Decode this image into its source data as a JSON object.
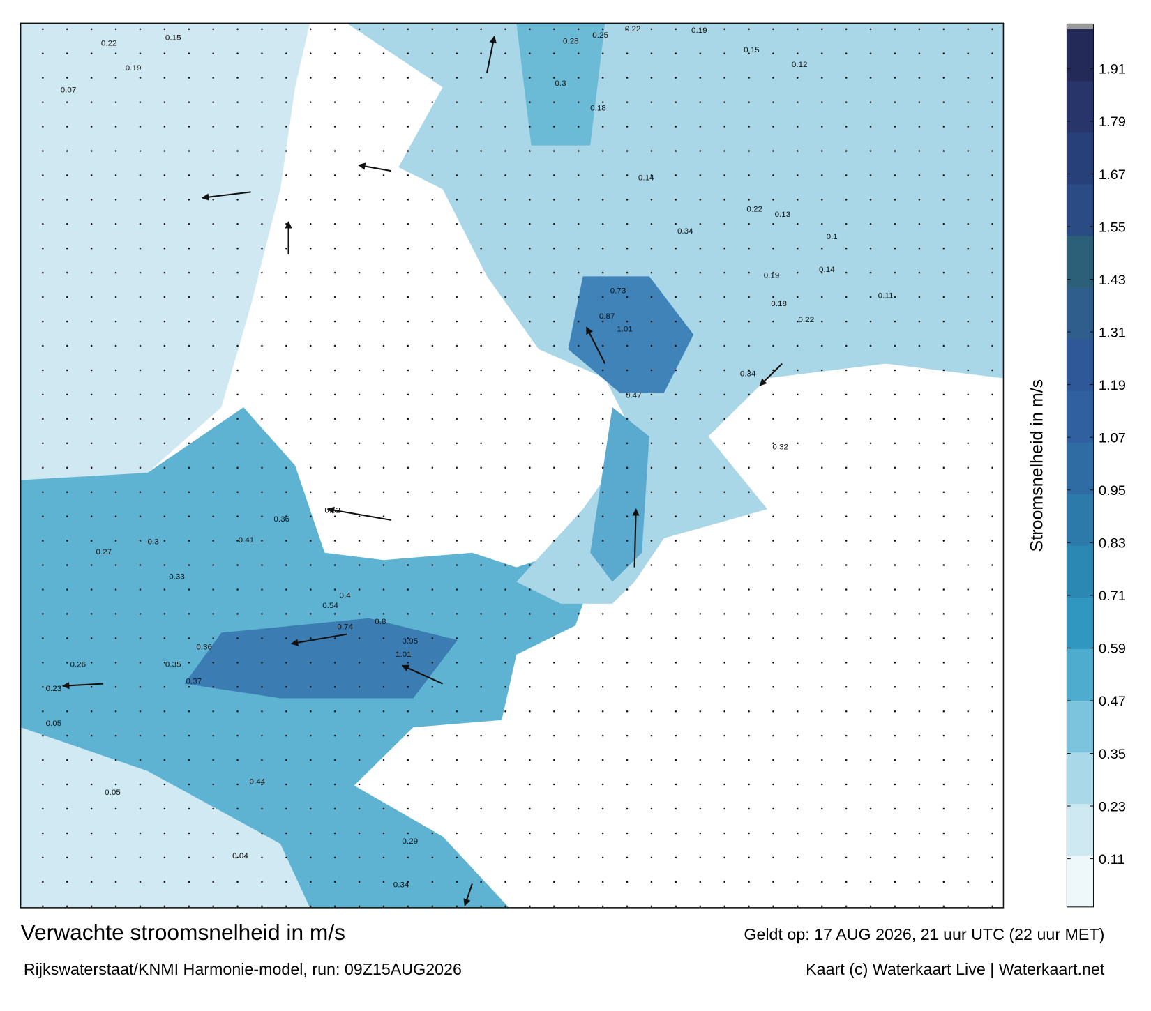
{
  "header": {
    "title": "Verwachte stroomsnelheid in m/s",
    "subtitle": "Rijkswaterstaat/KNMI Harmonie-model, run: 09Z15AUG2026",
    "valid": "Geldt op: 17 AUG 2026, 21 uur UTC (22 uur MET)",
    "credit": "Kaart (c) Waterkaart Live | Waterkaart.net"
  },
  "colorbar": {
    "label": "Stroomsnelheid in m/s",
    "range": [
      0,
      2
    ],
    "ticks": [
      0.11,
      0.23,
      0.35,
      0.47,
      0.59,
      0.71,
      0.83,
      0.95,
      1.07,
      1.19,
      1.31,
      1.43,
      1.55,
      1.67,
      1.79,
      1.91
    ],
    "colors": [
      "#eef7fa",
      "#cfe9f2",
      "#a9d8e9",
      "#7cc3de",
      "#4eaccf",
      "#2f97c0",
      "#2a88b2",
      "#2c7aaa",
      "#2e6ca3",
      "#30609f",
      "#2f5898",
      "#2f5e8c",
      "#2c5f78",
      "#2b4b84",
      "#28407a",
      "#27356b",
      "#232a57"
    ]
  },
  "current_labels": [
    0.22,
    0.15,
    0.19,
    0.07,
    0.3,
    0.28,
    0.25,
    0.22,
    0.19,
    0.15,
    0.12,
    0.18,
    0.14,
    0.34,
    0.22,
    0.13,
    0.1,
    0.19,
    0.14,
    0.11,
    0.18,
    0.22,
    1.01,
    0.73,
    0.87,
    0.47,
    0.34,
    0.32,
    0.52,
    0.36,
    0.41,
    0.3,
    0.27,
    0.33,
    0.36,
    0.37,
    0.35,
    0.95,
    1.01,
    0.8,
    0.74,
    0.54,
    0.4,
    0.23,
    0.26,
    0.05,
    0.05,
    0.04,
    0.29,
    0.34,
    0.44
  ]
}
